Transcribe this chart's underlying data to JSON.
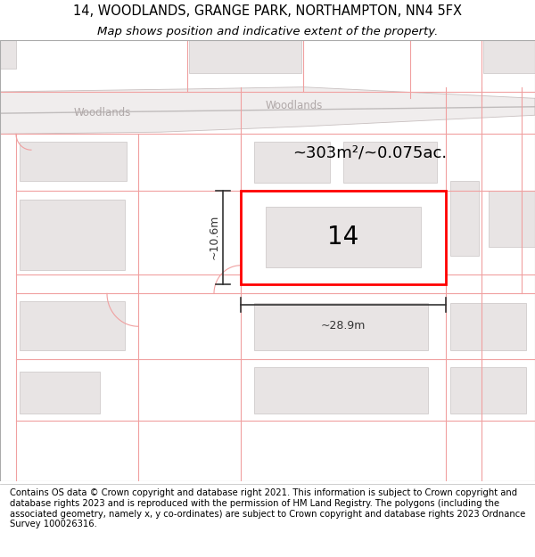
{
  "title_line1": "14, WOODLANDS, GRANGE PARK, NORTHAMPTON, NN4 5FX",
  "title_line2": "Map shows position and indicative extent of the property.",
  "footer_text": "Contains OS data © Crown copyright and database right 2021. This information is subject to Crown copyright and database rights 2023 and is reproduced with the permission of HM Land Registry. The polygons (including the associated geometry, namely x, y co-ordinates) are subject to Crown copyright and database rights 2023 Ordnance Survey 100026316.",
  "map_bg": "#ffffff",
  "road_fill": "#f0eded",
  "road_edge_color": "#c8c0c0",
  "road_label_color": "#b0a8a8",
  "building_fill": "#e8e4e4",
  "building_edge": "#c8c4c4",
  "property_fill": "#ffffff",
  "property_edge": "#ff0000",
  "property_label": "14",
  "area_text": "~303m²/~0.075ac.",
  "width_text": "~28.9m",
  "height_text": "~10.6m",
  "title_fontsize": 10.5,
  "subtitle_fontsize": 9.5,
  "footer_fontsize": 7.2,
  "map_border_color": "#cccccc",
  "dim_line_color": "#333333",
  "red_line_color": "#f0a0a0",
  "red_line_lw": 0.8
}
